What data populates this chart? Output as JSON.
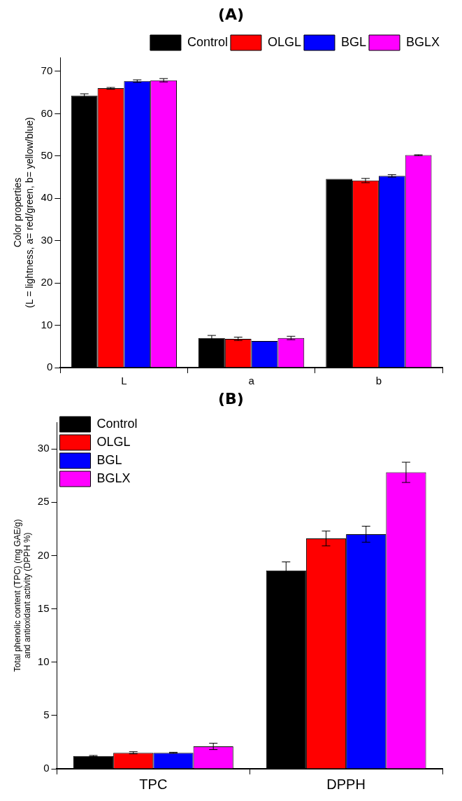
{
  "chart_data": [
    {
      "type": "bar",
      "title": "(A)",
      "ylabel": "Color properties\n(L = lightness, a= red/green, b= yellow/blue)",
      "categories": [
        "L",
        "a",
        "b"
      ],
      "ylim": [
        0,
        73.3
      ],
      "yticks": [
        0,
        10,
        20,
        30,
        40,
        50,
        60,
        70
      ],
      "legend": "top right",
      "series": [
        {
          "name": "Control",
          "color": "#000000",
          "values": [
            64.3,
            7.0,
            44.6
          ],
          "errors": [
            0.4,
            0.6,
            null
          ]
        },
        {
          "name": "OLGL",
          "color": "#ff0000",
          "values": [
            66.0,
            6.8,
            44.2
          ],
          "errors": [
            0.2,
            0.4,
            0.5
          ]
        },
        {
          "name": "BGL",
          "color": "#0000ff",
          "values": [
            67.7,
            6.3,
            45.3
          ],
          "errors": [
            0.3,
            null,
            0.3
          ]
        },
        {
          "name": "BGLX",
          "color": "#ff00ff",
          "values": [
            67.9,
            7.0,
            50.2
          ],
          "errors": [
            0.4,
            0.4,
            0.1
          ]
        }
      ]
    },
    {
      "type": "bar",
      "title": "(B)",
      "ylabel": "Total phenolic content (TPC) (mg GAE/g)\nand antioxidant activity (DPPH %)",
      "categories": [
        "TPC",
        "DPPH"
      ],
      "ylim": [
        0,
        32.5
      ],
      "yticks": [
        0,
        5,
        10,
        15,
        20,
        25,
        30
      ],
      "legend": "top left",
      "series": [
        {
          "name": "Control",
          "color": "#000000",
          "values": [
            1.2,
            18.6
          ],
          "errors": [
            0.05,
            0.8
          ]
        },
        {
          "name": "OLGL",
          "color": "#ff0000",
          "values": [
            1.5,
            21.6
          ],
          "errors": [
            0.1,
            0.7
          ]
        },
        {
          "name": "BGL",
          "color": "#0000ff",
          "values": [
            1.5,
            22.0
          ],
          "errors": [
            0.05,
            0.75
          ]
        },
        {
          "name": "BGLX",
          "color": "#ff00ff",
          "values": [
            2.1,
            27.8
          ],
          "errors": [
            0.3,
            0.95
          ]
        }
      ]
    }
  ]
}
